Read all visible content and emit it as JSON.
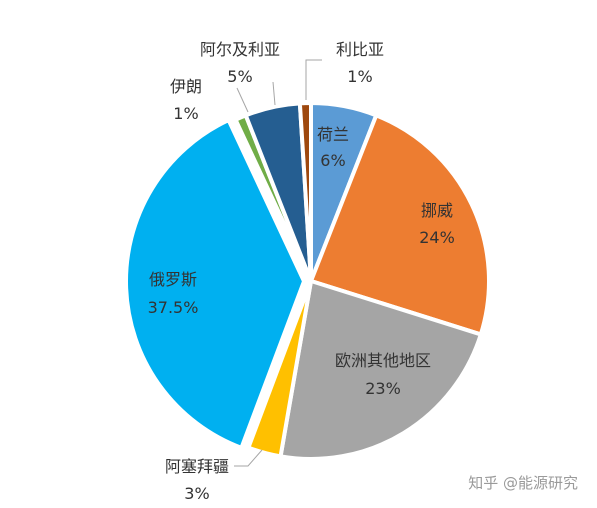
{
  "chart_data": {
    "type": "pie",
    "title": "",
    "slices": [
      {
        "name": "荷兰",
        "value": 6,
        "label": "6%",
        "color": "#5b9bd5"
      },
      {
        "name": "挪威",
        "value": 24,
        "label": "24%",
        "color": "#ed7d31"
      },
      {
        "name": "欧洲其他地区",
        "value": 23,
        "label": "23%",
        "color": "#a5a5a5"
      },
      {
        "name": "阿塞拜疆",
        "value": 3,
        "label": "3%",
        "color": "#ffc000"
      },
      {
        "name": "俄罗斯",
        "value": 37.5,
        "label": "37.5%",
        "color": "#00b0f0"
      },
      {
        "name": "伊朗",
        "value": 1,
        "label": "1%",
        "color": "#70ad47"
      },
      {
        "name": "阿尔及利亚",
        "value": 5,
        "label": "5%",
        "color": "#255e91"
      },
      {
        "name": "利比亚",
        "value": 1,
        "label": "1%",
        "color": "#9e480e"
      }
    ]
  },
  "watermark": "知乎 @能源研究"
}
